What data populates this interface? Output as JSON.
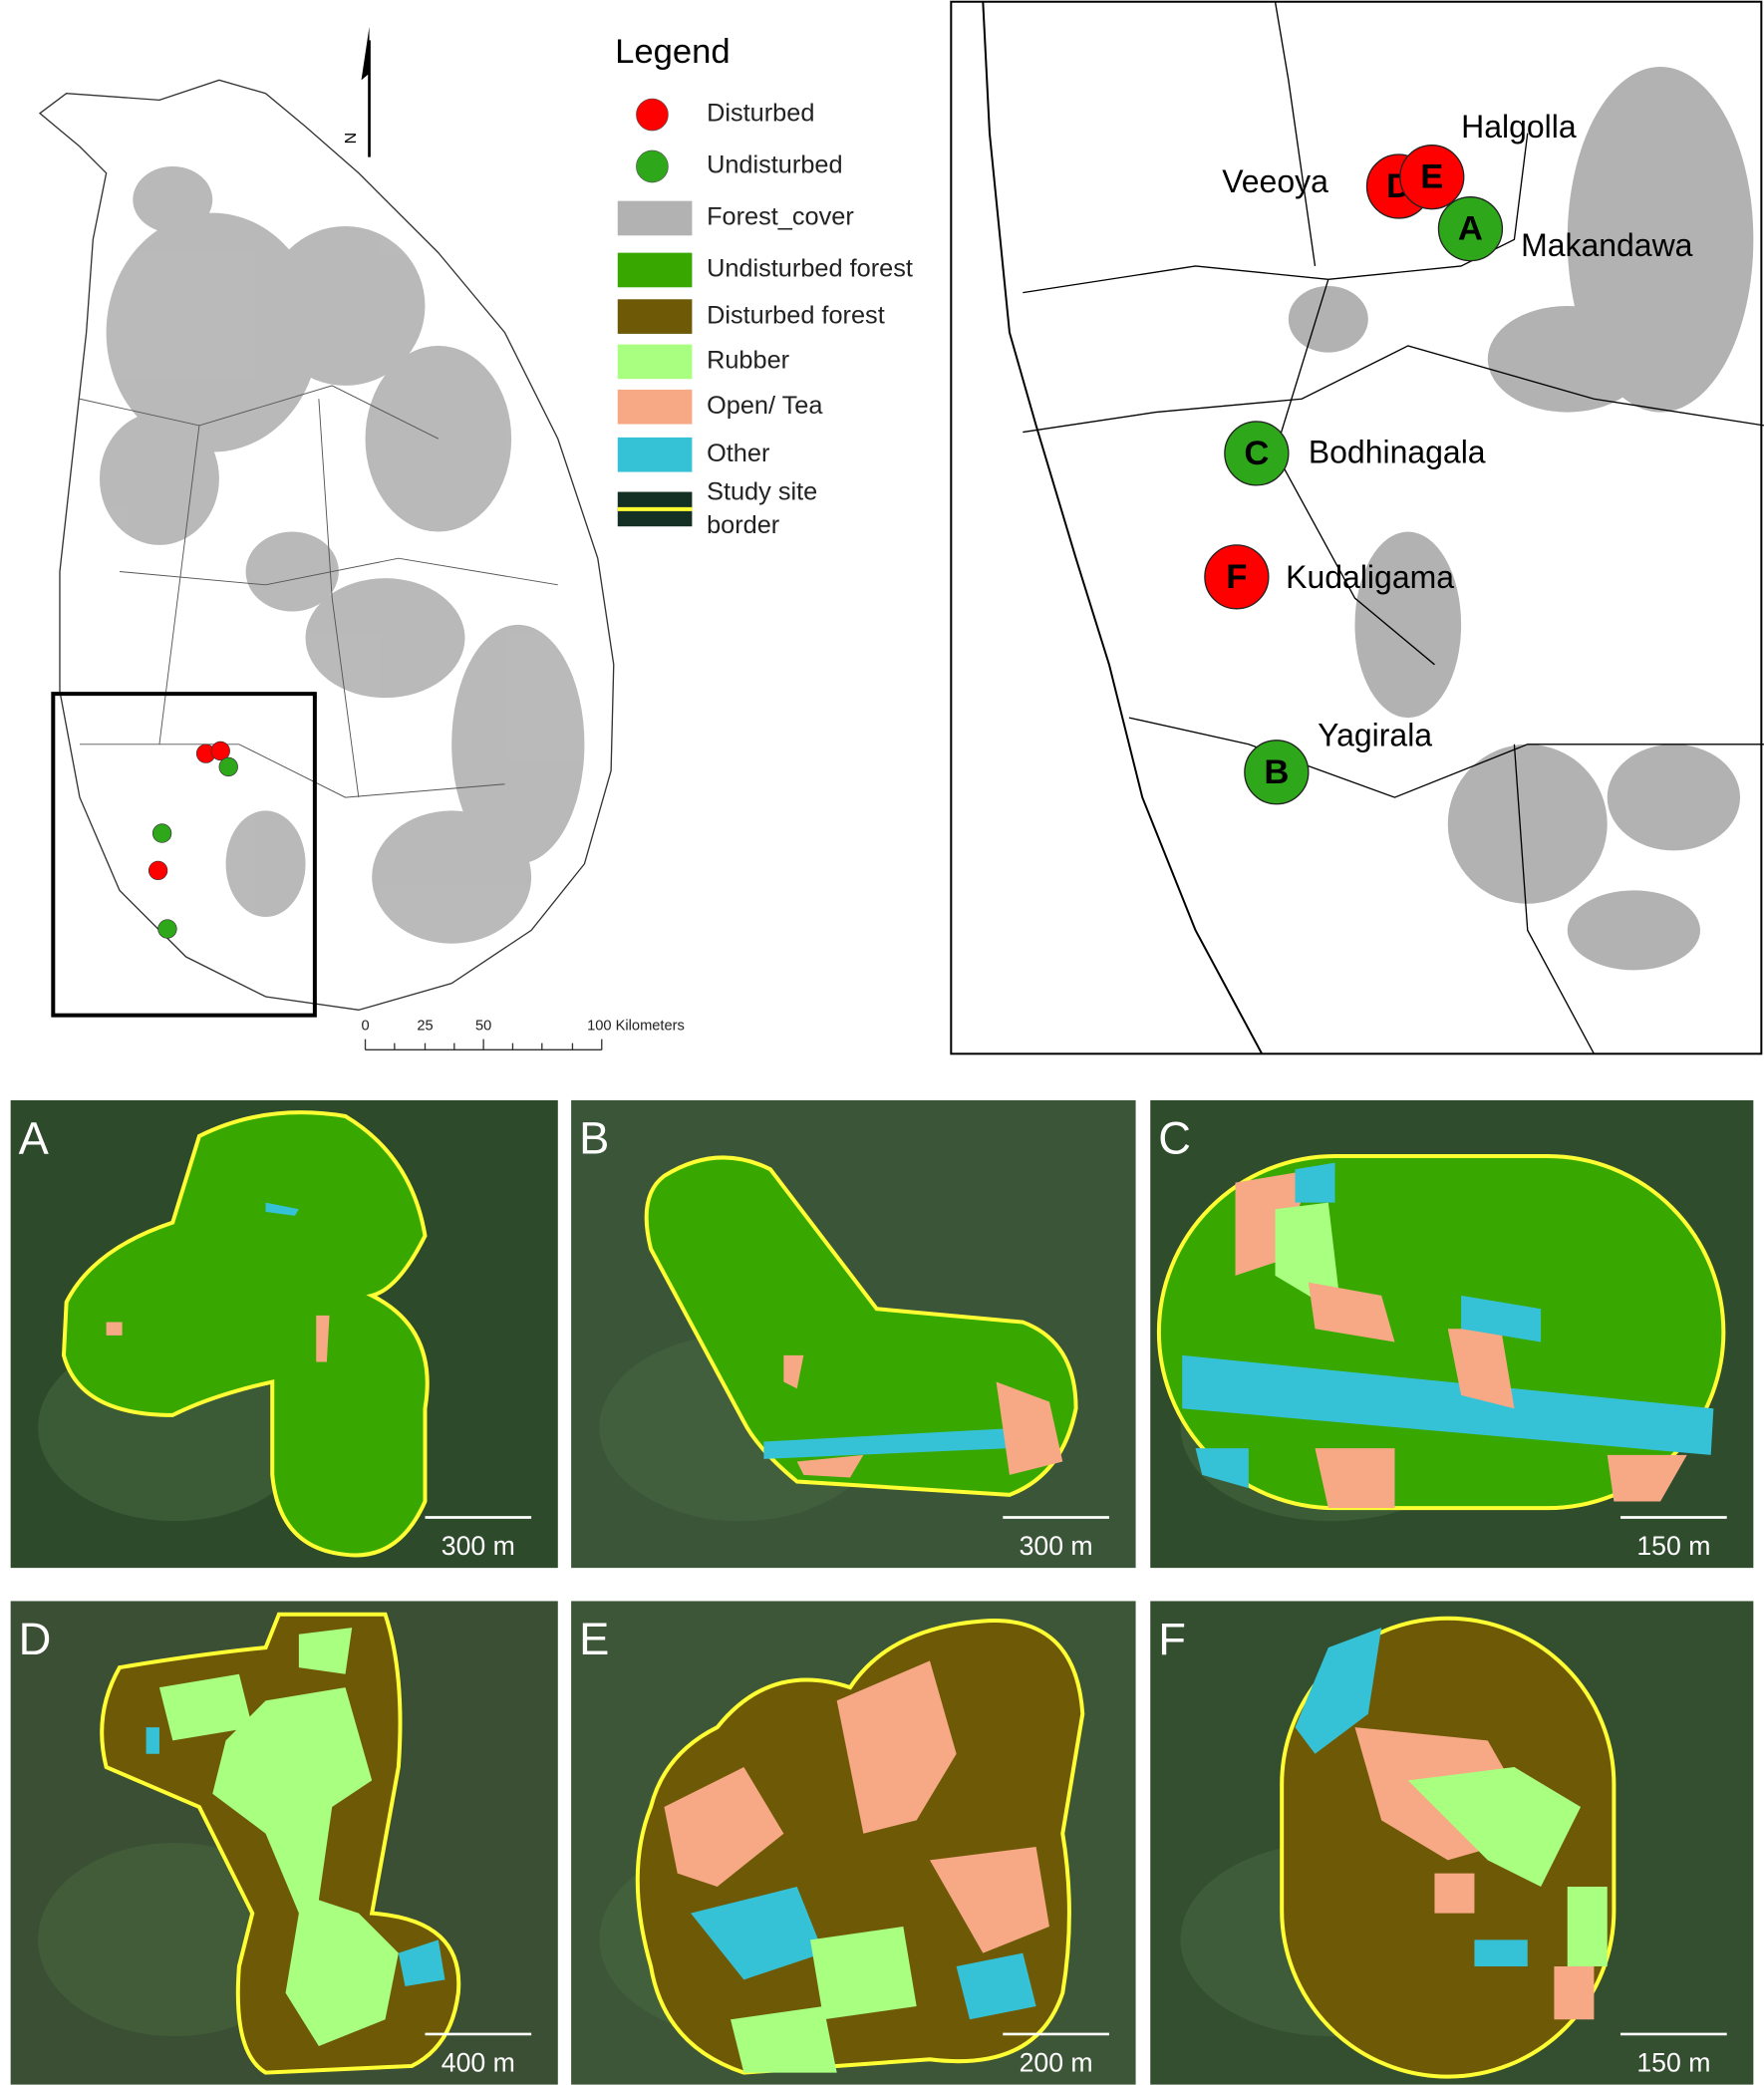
{
  "legend": {
    "title": "Legend",
    "items": [
      {
        "label": "Disturbed",
        "color": "#ff0000"
      },
      {
        "label": "Undisturbed",
        "color": "#2ea81a"
      },
      {
        "label": "Forest_cover",
        "color": "#b2b2b2"
      },
      {
        "label": "Undisturbed forest",
        "color": "#38a800"
      },
      {
        "label": "Disturbed forest",
        "color": "#6e5a06"
      },
      {
        "label": "Rubber",
        "color": "#a8ff80"
      },
      {
        "label": "Open/ Tea",
        "color": "#f7a884"
      },
      {
        "label": "Other",
        "color": "#36c2d6"
      },
      {
        "label": [
          "Study site",
          "border"
        ],
        "color": "#ffff33"
      }
    ]
  },
  "north": "N",
  "scale_bar": [
    "0",
    "25",
    "50",
    "100 Kilometers"
  ],
  "sites": [
    {
      "letter": "D",
      "name": "Veeoya",
      "color": "#ff0000"
    },
    {
      "letter": "E",
      "name": "Halgolla",
      "color": "#ff0000"
    },
    {
      "letter": "A",
      "name": "Makandawa",
      "color": "#2ea81a"
    },
    {
      "letter": "C",
      "name": "Bodhinagala",
      "color": "#2ea81a"
    },
    {
      "letter": "F",
      "name": "Kudaligama",
      "color": "#ff0000"
    },
    {
      "letter": "B",
      "name": "Yagirala",
      "color": "#2ea81a"
    }
  ],
  "panels": [
    {
      "label": "A",
      "scale": "300 m"
    },
    {
      "label": "B",
      "scale": "300 m"
    },
    {
      "label": "C",
      "scale": "150 m"
    },
    {
      "label": "D",
      "scale": "400 m"
    },
    {
      "label": "E",
      "scale": "200 m"
    },
    {
      "label": "F",
      "scale": "150 m"
    }
  ]
}
